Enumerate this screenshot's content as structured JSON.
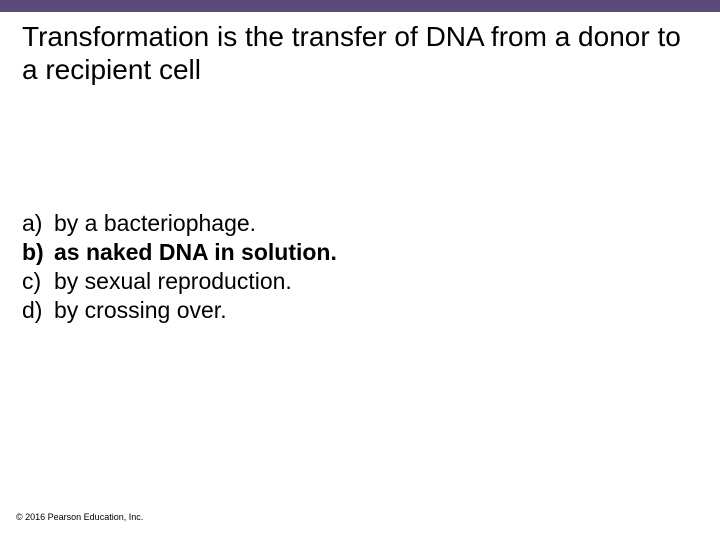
{
  "colors": {
    "top_bar_bg": "#5b4a7a",
    "page_bg": "#ffffff",
    "text": "#000000"
  },
  "typography": {
    "title_fontsize": 28,
    "option_fontsize": 23,
    "copyright_fontsize": 9,
    "font_family": "Arial"
  },
  "title": "Transformation is the transfer of DNA from a donor to a recipient cell",
  "options": [
    {
      "letter": "a)",
      "text": "by a bacteriophage.",
      "bold": false
    },
    {
      "letter": "b)",
      "text": "as naked DNA in solution.",
      "bold": true
    },
    {
      "letter": "c)",
      "text": "by sexual reproduction.",
      "bold": false
    },
    {
      "letter": "d)",
      "text": "by crossing over.",
      "bold": false
    }
  ],
  "copyright": "© 2016 Pearson Education, Inc."
}
